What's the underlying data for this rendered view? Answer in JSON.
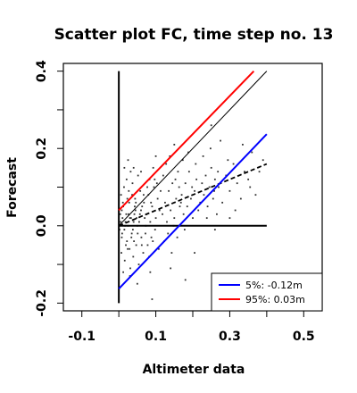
{
  "chart_data": {
    "type": "scatter",
    "title": "Scatter plot FC, time step no. 13",
    "xlabel": "Altimeter data",
    "ylabel": "Forecast",
    "xlim": [
      -0.15,
      0.55
    ],
    "ylim": [
      -0.22,
      0.42
    ],
    "x_ticks": [
      -0.1,
      0.1,
      0.3,
      0.5
    ],
    "x_tick_labels": [
      "-0.1",
      "0.1",
      "0.3",
      "0.5"
    ],
    "x_minor_ticks": [
      0.0,
      0.2,
      0.4
    ],
    "y_ticks": [
      -0.2,
      0.0,
      0.2,
      0.4
    ],
    "y_tick_labels": [
      "-0.2",
      "0.0",
      "0.2",
      "0.4"
    ],
    "y_minor_ticks": [
      -0.1,
      0.1,
      0.3
    ],
    "grid": false,
    "legend_position": "bottom-right",
    "series": [
      {
        "name": "5%: -0.12m",
        "kind": "line",
        "color": "#0000ff",
        "points": [
          [
            0.0,
            -0.163
          ],
          [
            0.4,
            0.237
          ]
        ]
      },
      {
        "name": "95%:  0.03m",
        "kind": "line",
        "color": "#ff0000",
        "points": [
          [
            0.0,
            0.04
          ],
          [
            0.365,
            0.4
          ]
        ]
      }
    ],
    "reference_lines": [
      {
        "kind": "identity",
        "style": "solid",
        "color": "#000000",
        "points": [
          [
            0.0,
            0.0
          ],
          [
            0.4,
            0.4
          ]
        ]
      },
      {
        "kind": "regression",
        "style": "dashed",
        "color": "#000000",
        "points": [
          [
            0.0,
            0.0
          ],
          [
            0.4,
            0.16
          ]
        ]
      },
      {
        "kind": "zero-horizontal",
        "style": "solid",
        "color": "#000000",
        "points": [
          [
            0.0,
            0.0
          ],
          [
            0.4,
            0.0
          ]
        ]
      },
      {
        "kind": "zero-vertical",
        "style": "solid",
        "color": "#000000",
        "points": [
          [
            0.0,
            -0.2
          ],
          [
            0.0,
            0.4
          ]
        ]
      }
    ],
    "scatter": {
      "color": "#333333",
      "points": [
        [
          0.005,
          0.01
        ],
        [
          0.01,
          0.02
        ],
        [
          0.015,
          -0.01
        ],
        [
          0.02,
          0.03
        ],
        [
          0.025,
          0.0
        ],
        [
          0.03,
          0.02
        ],
        [
          0.035,
          -0.02
        ],
        [
          0.04,
          0.01
        ],
        [
          0.045,
          0.04
        ],
        [
          0.05,
          0.0
        ],
        [
          0.008,
          -0.03
        ],
        [
          0.012,
          0.05
        ],
        [
          0.018,
          0.01
        ],
        [
          0.022,
          -0.04
        ],
        [
          0.028,
          0.06
        ],
        [
          0.033,
          0.02
        ],
        [
          0.038,
          -0.01
        ],
        [
          0.042,
          0.03
        ],
        [
          0.048,
          0.02
        ],
        [
          0.055,
          0.01
        ],
        [
          0.006,
          0.08
        ],
        [
          0.014,
          0.1
        ],
        [
          0.021,
          0.12
        ],
        [
          0.027,
          0.09
        ],
        [
          0.032,
          0.14
        ],
        [
          0.037,
          0.11
        ],
        [
          0.044,
          0.07
        ],
        [
          0.052,
          0.13
        ],
        [
          0.058,
          0.09
        ],
        [
          0.063,
          0.05
        ],
        [
          0.007,
          -0.07
        ],
        [
          0.016,
          -0.09
        ],
        [
          0.024,
          -0.06
        ],
        [
          0.031,
          -0.11
        ],
        [
          0.039,
          -0.08
        ],
        [
          0.047,
          -0.05
        ],
        [
          0.054,
          -0.1
        ],
        [
          0.061,
          -0.03
        ],
        [
          0.066,
          -0.07
        ],
        [
          0.07,
          0.02
        ],
        [
          0.06,
          0.04
        ],
        [
          0.068,
          0.06
        ],
        [
          0.075,
          0.03
        ],
        [
          0.08,
          0.08
        ],
        [
          0.085,
          0.01
        ],
        [
          0.09,
          0.05
        ],
        [
          0.095,
          0.1
        ],
        [
          0.1,
          0.02
        ],
        [
          0.105,
          0.07
        ],
        [
          0.11,
          0.04
        ],
        [
          0.072,
          -0.02
        ],
        [
          0.078,
          -0.05
        ],
        [
          0.083,
          0.12
        ],
        [
          0.088,
          -0.03
        ],
        [
          0.093,
          0.15
        ],
        [
          0.098,
          -0.01
        ],
        [
          0.103,
          0.11
        ],
        [
          0.108,
          -0.06
        ],
        [
          0.113,
          0.09
        ],
        [
          0.118,
          0.03
        ],
        [
          0.12,
          0.13
        ],
        [
          0.125,
          0.06
        ],
        [
          0.13,
          0.01
        ],
        [
          0.135,
          0.09
        ],
        [
          0.14,
          0.04
        ],
        [
          0.145,
          0.11
        ],
        [
          0.15,
          0.02
        ],
        [
          0.155,
          0.07
        ],
        [
          0.16,
          0.14
        ],
        [
          0.165,
          0.05
        ],
        [
          0.123,
          -0.04
        ],
        [
          0.128,
          0.16
        ],
        [
          0.133,
          -0.02
        ],
        [
          0.138,
          0.18
        ],
        [
          0.143,
          -0.07
        ],
        [
          0.148,
          0.0
        ],
        [
          0.153,
          0.12
        ],
        [
          0.158,
          -0.03
        ],
        [
          0.163,
          0.1
        ],
        [
          0.168,
          0.06
        ],
        [
          0.17,
          0.08
        ],
        [
          0.175,
          0.03
        ],
        [
          0.18,
          0.11
        ],
        [
          0.185,
          0.05
        ],
        [
          0.19,
          0.14
        ],
        [
          0.195,
          0.07
        ],
        [
          0.2,
          0.02
        ],
        [
          0.205,
          0.09
        ],
        [
          0.21,
          0.12
        ],
        [
          0.215,
          0.04
        ],
        [
          0.173,
          0.17
        ],
        [
          0.178,
          -0.01
        ],
        [
          0.188,
          0.19
        ],
        [
          0.198,
          0.1
        ],
        [
          0.208,
          0.16
        ],
        [
          0.22,
          0.06
        ],
        [
          0.225,
          0.11
        ],
        [
          0.23,
          0.08
        ],
        [
          0.235,
          0.13
        ],
        [
          0.24,
          0.05
        ],
        [
          0.245,
          0.1
        ],
        [
          0.25,
          0.15
        ],
        [
          0.255,
          0.07
        ],
        [
          0.26,
          0.12
        ],
        [
          0.265,
          0.03
        ],
        [
          0.228,
          0.18
        ],
        [
          0.238,
          0.02
        ],
        [
          0.248,
          0.2
        ],
        [
          0.258,
          0.09
        ],
        [
          0.268,
          0.14
        ],
        [
          0.27,
          0.1
        ],
        [
          0.28,
          0.06
        ],
        [
          0.29,
          0.13
        ],
        [
          0.3,
          0.09
        ],
        [
          0.31,
          0.16
        ],
        [
          0.32,
          0.11
        ],
        [
          0.33,
          0.07
        ],
        [
          0.34,
          0.14
        ],
        [
          0.35,
          0.12
        ],
        [
          0.36,
          0.19
        ],
        [
          0.275,
          0.22
        ],
        [
          0.295,
          0.17
        ],
        [
          0.315,
          0.04
        ],
        [
          0.335,
          0.21
        ],
        [
          0.355,
          0.1
        ],
        [
          0.04,
          0.15
        ],
        [
          0.06,
          0.14
        ],
        [
          0.1,
          0.18
        ],
        [
          0.15,
          0.21
        ],
        [
          0.25,
          0.26
        ],
        [
          0.085,
          -0.12
        ],
        [
          0.14,
          -0.11
        ],
        [
          0.18,
          -0.14
        ],
        [
          0.09,
          -0.19
        ],
        [
          0.205,
          -0.07
        ],
        [
          0.03,
          -0.13
        ],
        [
          0.05,
          -0.15
        ],
        [
          0.015,
          0.15
        ],
        [
          0.025,
          0.17
        ],
        [
          0.012,
          -0.12
        ],
        [
          0.38,
          0.14
        ],
        [
          0.39,
          0.17
        ],
        [
          0.37,
          0.08
        ],
        [
          0.3,
          0.02
        ],
        [
          0.26,
          -0.01
        ],
        [
          0.008,
          0.04
        ],
        [
          0.017,
          0.0
        ],
        [
          0.026,
          0.03
        ],
        [
          0.034,
          -0.03
        ],
        [
          0.043,
          0.05
        ],
        [
          0.002,
          -0.01
        ],
        [
          0.004,
          0.03
        ],
        [
          0.009,
          -0.02
        ],
        [
          0.011,
          0.06
        ],
        [
          0.019,
          -0.05
        ],
        [
          0.023,
          0.07
        ],
        [
          0.029,
          -0.06
        ],
        [
          0.036,
          0.08
        ],
        [
          0.041,
          -0.04
        ],
        [
          0.046,
          0.06
        ],
        [
          0.051,
          -0.02
        ],
        [
          0.057,
          0.03
        ],
        [
          0.062,
          -0.05
        ],
        [
          0.067,
          0.08
        ],
        [
          0.073,
          0.0
        ],
        [
          0.077,
          0.1
        ],
        [
          0.082,
          -0.08
        ],
        [
          0.087,
          0.06
        ],
        [
          0.092,
          -0.04
        ],
        [
          0.097,
          0.12
        ]
      ]
    }
  }
}
